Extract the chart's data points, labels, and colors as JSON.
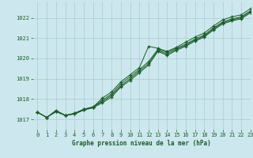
{
  "bg_color": "#cce8ee",
  "grid_color": "#aacccc",
  "line_color": "#1a5c28",
  "xlabel": "Graphe pression niveau de la mer (hPa)",
  "xlim": [
    -0.5,
    23
  ],
  "ylim": [
    1016.5,
    1022.8
  ],
  "yticks": [
    1017,
    1018,
    1019,
    1020,
    1021,
    1022
  ],
  "xticks": [
    0,
    1,
    2,
    3,
    4,
    5,
    6,
    7,
    8,
    9,
    10,
    11,
    12,
    13,
    14,
    15,
    16,
    17,
    18,
    19,
    20,
    21,
    22,
    23
  ],
  "line1": [
    1017.35,
    1017.1,
    1017.45,
    1017.2,
    1017.3,
    1017.5,
    1017.6,
    1018.05,
    1018.35,
    1018.85,
    1019.2,
    1019.55,
    1020.6,
    1020.5,
    1020.35,
    1020.55,
    1020.8,
    1021.05,
    1021.25,
    1021.6,
    1021.9,
    1022.05,
    1022.15,
    1022.45
  ],
  "line2": [
    1017.35,
    1017.1,
    1017.4,
    1017.2,
    1017.3,
    1017.5,
    1017.62,
    1017.95,
    1018.25,
    1018.75,
    1019.1,
    1019.45,
    1019.85,
    1020.45,
    1020.3,
    1020.5,
    1020.7,
    1020.95,
    1021.15,
    1021.5,
    1021.8,
    1021.95,
    1022.05,
    1022.35
  ],
  "line3": [
    1017.35,
    1017.1,
    1017.4,
    1017.2,
    1017.28,
    1017.48,
    1017.6,
    1017.88,
    1018.18,
    1018.65,
    1019.0,
    1019.38,
    1019.75,
    1020.4,
    1020.22,
    1020.45,
    1020.65,
    1020.9,
    1021.1,
    1021.45,
    1021.75,
    1021.9,
    1022.0,
    1022.3
  ],
  "line4": [
    1017.35,
    1017.1,
    1017.38,
    1017.2,
    1017.26,
    1017.46,
    1017.57,
    1017.82,
    1018.1,
    1018.6,
    1018.92,
    1019.3,
    1019.68,
    1020.35,
    1020.15,
    1020.4,
    1020.6,
    1020.85,
    1021.05,
    1021.4,
    1021.7,
    1021.85,
    1021.95,
    1022.25
  ]
}
